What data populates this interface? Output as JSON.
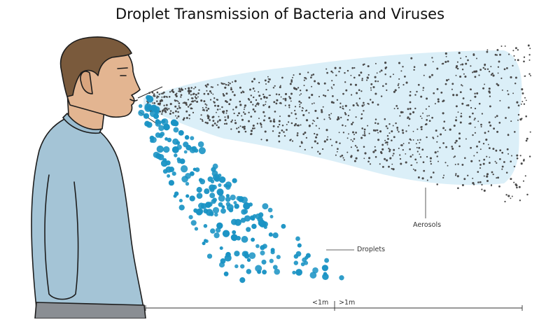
{
  "title": "Droplet Transmission of Bacteria and Viruses",
  "labels": {
    "aerosols": "Aerosols",
    "droplets": "Droplets",
    "near_distance": "<1m",
    "far_distance": ">1m"
  },
  "colors": {
    "skin": "#e3b591",
    "hair": "#7a5a3c",
    "shirt": "#a4c4d6",
    "droplet": "#1a93c4",
    "aerosol_dot": "#4a4a4a",
    "aerosol_cloud": "#cfe9f5"
  }
}
